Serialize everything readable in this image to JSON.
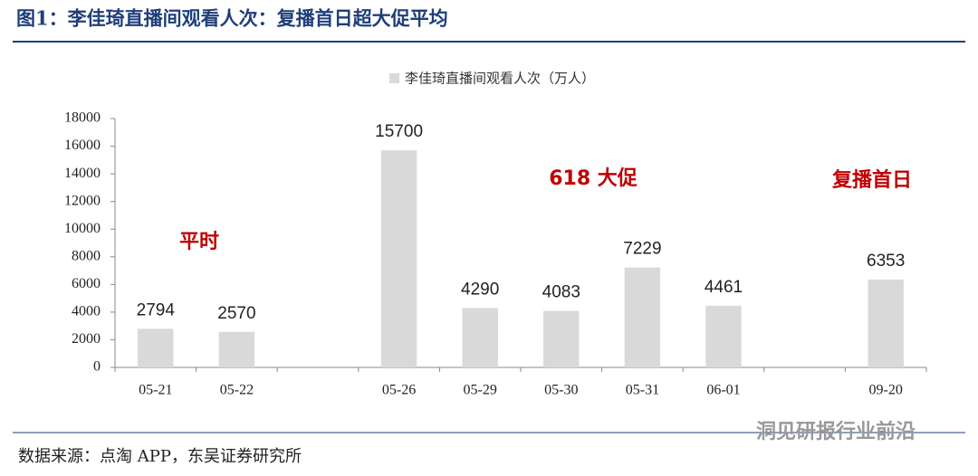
{
  "title": "图1：李佳琦直播间观看人次：复播首日超大促平均",
  "source": "数据来源：点淘 APP，东吴证券研究所",
  "watermark": "洞见研报行业前沿",
  "chart_data": {
    "type": "bar",
    "categories": [
      "05-21",
      "05-22",
      null,
      "05-26",
      "05-29",
      "05-30",
      "05-31",
      "06-01",
      null,
      "09-20"
    ],
    "series": [
      {
        "name": "李佳琦直播间观看人次（万人）",
        "color": "#d9d9d9",
        "values": [
          2794,
          2570,
          null,
          15700,
          4290,
          4083,
          7229,
          4461,
          null,
          6353
        ]
      }
    ],
    "ylim": [
      0,
      18000
    ],
    "yticks": [
      0,
      2000,
      4000,
      6000,
      8000,
      10000,
      12000,
      14000,
      16000,
      18000
    ],
    "annotations": [
      "平时",
      "618 大促",
      "复播首日"
    ],
    "annotation_color": "#c00000"
  }
}
